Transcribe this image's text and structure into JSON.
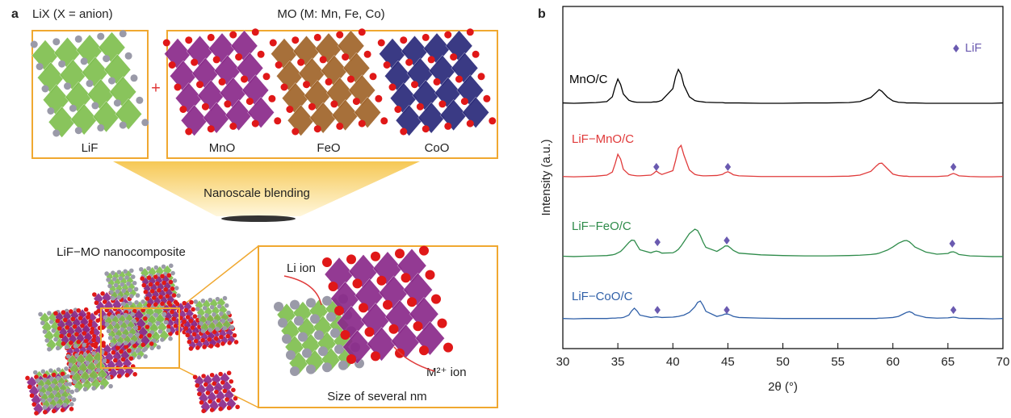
{
  "panel_a": {
    "label": "a",
    "lix_title": "LiX (X = anion)",
    "mo_title": "MO (M: Mn, Fe, Co)",
    "plus": "+",
    "structures": [
      "LiF",
      "MnO",
      "FeO",
      "CoO"
    ],
    "process": "Nanoscale blending",
    "composite_title": "LiF−MO nanocomposite",
    "li_ion": "Li ion",
    "m_ion": "M²⁺ ion",
    "size_note": "Size of several nm"
  },
  "chart_data": {
    "type": "line",
    "panel_label": "b",
    "xlabel": "2θ (°)",
    "ylabel": "Intensity (a.u.)",
    "xlim": [
      30,
      70
    ],
    "xticks": [
      30,
      35,
      40,
      45,
      50,
      55,
      60,
      65,
      70
    ],
    "ylim": [
      0,
      100
    ],
    "legend": {
      "name": "LiF",
      "color": "#6a5ab0"
    },
    "x": [
      30,
      31,
      32,
      33,
      34,
      34.5,
      34.75,
      35,
      35.25,
      35.5,
      36,
      36.25,
      36.5,
      36.75,
      37,
      38,
      38.25,
      38.5,
      38.75,
      39,
      40,
      40.25,
      40.5,
      40.75,
      41,
      41.5,
      42,
      42.25,
      42.5,
      42.75,
      43,
      44,
      44.5,
      44.75,
      45,
      45.25,
      45.5,
      46,
      48,
      50,
      52,
      54,
      56,
      57,
      58,
      58.5,
      58.75,
      59,
      59.5,
      60,
      60.5,
      61,
      61.25,
      61.5,
      61.75,
      62,
      63,
      64,
      65,
      65.25,
      65.5,
      65.75,
      66,
      67,
      68,
      69,
      70
    ],
    "series": [
      {
        "name": "MnO/C",
        "color": "#000000",
        "values": [
          71.8,
          71.7,
          71.8,
          71.9,
          72.2,
          73.6,
          76.5,
          78.8,
          77.2,
          74.4,
          72.6,
          72.3,
          72.1,
          72.0,
          72.0,
          72.0,
          72.1,
          72.1,
          72.3,
          72.6,
          76.0,
          79.5,
          81.6,
          80.2,
          77.0,
          73.6,
          72.5,
          72.3,
          72.2,
          72.1,
          72.0,
          71.9,
          71.9,
          71.8,
          71.8,
          71.8,
          71.8,
          71.8,
          71.7,
          71.7,
          71.8,
          71.8,
          71.9,
          72.2,
          73.4,
          74.9,
          75.7,
          75.2,
          73.5,
          72.4,
          72.0,
          71.9,
          71.8,
          71.8,
          71.8,
          71.8,
          71.7,
          71.7,
          71.7,
          71.7,
          71.7,
          71.7,
          71.7,
          71.7,
          71.7,
          71.7,
          71.8
        ]
      },
      {
        "name": "LiF−MnO/C",
        "color": "#e03a3a",
        "values": [
          50.3,
          50.2,
          50.3,
          50.4,
          50.7,
          51.6,
          54.0,
          56.8,
          55.4,
          52.4,
          50.9,
          50.7,
          50.6,
          50.5,
          50.5,
          50.7,
          51.2,
          51.9,
          51.3,
          50.9,
          52.0,
          55.0,
          58.5,
          59.4,
          56.6,
          52.2,
          50.9,
          50.7,
          50.6,
          50.5,
          50.5,
          50.6,
          50.9,
          51.4,
          51.7,
          51.3,
          50.8,
          50.5,
          50.3,
          50.3,
          50.3,
          50.3,
          50.4,
          50.7,
          51.8,
          53.4,
          54.1,
          54.2,
          52.6,
          51.0,
          50.6,
          50.4,
          50.4,
          50.3,
          50.3,
          50.3,
          50.3,
          50.3,
          50.5,
          50.9,
          51.2,
          50.9,
          50.5,
          50.3,
          50.2,
          50.2,
          50.3
        ],
        "marker_x": [
          38.5,
          45,
          65.5
        ],
        "marker_y": [
          53.1,
          53.1,
          53.1
        ]
      },
      {
        "name": "LiF−FeO/C",
        "color": "#2e8b4a",
        "values": [
          27.0,
          26.9,
          27.0,
          27.1,
          27.2,
          27.4,
          27.6,
          28.0,
          28.4,
          29.2,
          31.0,
          31.7,
          31.6,
          30.2,
          28.9,
          28.0,
          28.3,
          28.5,
          28.3,
          27.9,
          28.0,
          28.4,
          29.0,
          30.0,
          31.2,
          33.6,
          34.9,
          34.5,
          33.0,
          31.1,
          29.6,
          28.4,
          29.4,
          30.0,
          30.0,
          29.4,
          28.7,
          27.9,
          27.4,
          27.2,
          27.1,
          27.1,
          27.2,
          27.3,
          27.5,
          27.7,
          27.9,
          28.2,
          28.8,
          29.7,
          30.8,
          31.5,
          31.6,
          31.2,
          30.5,
          29.7,
          28.2,
          27.6,
          27.8,
          28.2,
          28.3,
          28.0,
          27.5,
          27.1,
          27.0,
          26.9,
          26.9
        ],
        "marker_x": [
          38.6,
          44.9,
          65.4
        ],
        "marker_y": [
          31.1,
          31.6,
          30.7
        ]
      },
      {
        "name": "LiF−CoO/C",
        "color": "#3060a8",
        "values": [
          8.8,
          8.7,
          8.8,
          8.8,
          8.8,
          8.9,
          8.9,
          9.0,
          9.0,
          9.1,
          9.8,
          11.0,
          11.8,
          11.0,
          9.8,
          9.1,
          9.2,
          9.3,
          9.2,
          9.1,
          9.2,
          9.3,
          9.4,
          9.6,
          9.8,
          10.6,
          12.2,
          13.5,
          13.9,
          12.6,
          10.9,
          9.4,
          9.8,
          10.1,
          10.1,
          9.8,
          9.4,
          9.1,
          8.9,
          8.8,
          8.8,
          8.8,
          8.8,
          8.8,
          8.8,
          8.8,
          8.9,
          8.9,
          9.0,
          9.1,
          9.4,
          10.2,
          10.6,
          10.8,
          10.5,
          9.9,
          9.1,
          8.9,
          9.0,
          9.1,
          9.2,
          9.1,
          8.9,
          8.8,
          8.8,
          8.7,
          8.8
        ],
        "marker_x": [
          38.6,
          44.9,
          65.5
        ],
        "marker_y": [
          11.3,
          11.3,
          11.3
        ]
      }
    ]
  }
}
